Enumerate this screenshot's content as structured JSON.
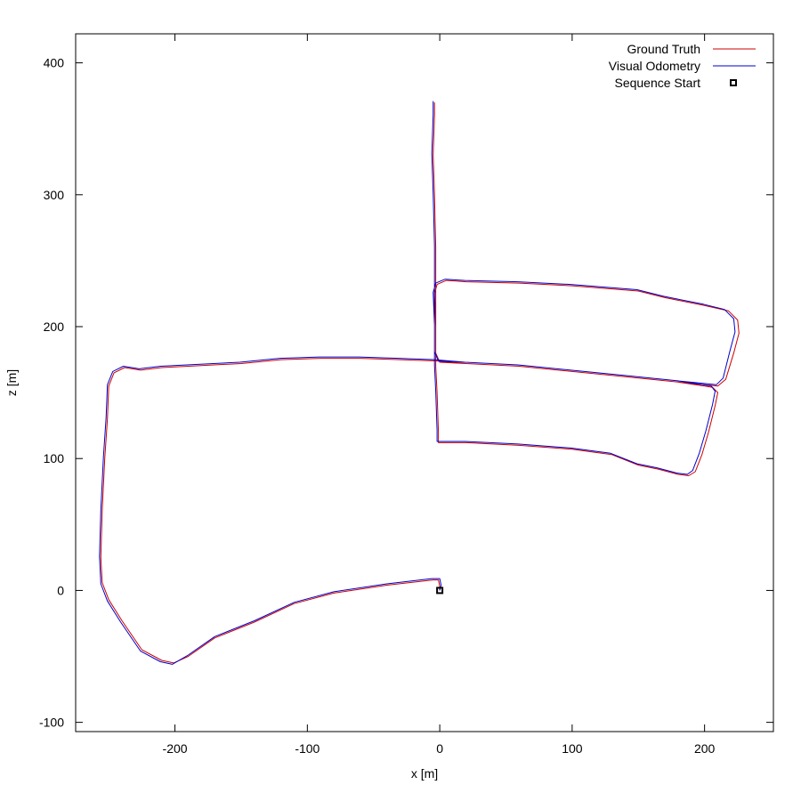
{
  "chart_data": {
    "type": "line",
    "xlabel": "x [m]",
    "ylabel": "z [m]",
    "xlim": [
      -275,
      252
    ],
    "ylim": [
      -107,
      422
    ],
    "xticks": [
      -200,
      -100,
      0,
      100,
      200
    ],
    "yticks": [
      -100,
      0,
      100,
      200,
      300,
      400
    ],
    "grid": false,
    "legend_position": "top-right",
    "series": [
      {
        "name": "Ground Truth",
        "color": "#cc0000",
        "points": [
          [
            0,
            0
          ],
          [
            0,
            3
          ],
          [
            -1,
            8
          ],
          [
            -5,
            8
          ],
          [
            -40,
            4
          ],
          [
            -80,
            -2
          ],
          [
            -110,
            -10
          ],
          [
            -140,
            -24
          ],
          [
            -170,
            -36
          ],
          [
            -190,
            -50
          ],
          [
            -201,
            -55
          ],
          [
            -210,
            -53
          ],
          [
            -225,
            -45
          ],
          [
            -240,
            -23
          ],
          [
            -250,
            -7
          ],
          [
            -255,
            6
          ],
          [
            -256,
            25
          ],
          [
            -255,
            60
          ],
          [
            -253,
            100
          ],
          [
            -251,
            130
          ],
          [
            -250,
            155
          ],
          [
            -246,
            165
          ],
          [
            -238,
            169
          ],
          [
            -226,
            167
          ],
          [
            -210,
            169
          ],
          [
            -190,
            170
          ],
          [
            -150,
            172
          ],
          [
            -120,
            175
          ],
          [
            -90,
            176
          ],
          [
            -60,
            176
          ],
          [
            -30,
            175
          ],
          [
            -3,
            174
          ],
          [
            20,
            172
          ],
          [
            60,
            170
          ],
          [
            100,
            166
          ],
          [
            140,
            162
          ],
          [
            180,
            158
          ],
          [
            200,
            156
          ],
          [
            210,
            155
          ],
          [
            216,
            160
          ],
          [
            222,
            180
          ],
          [
            226,
            195
          ],
          [
            225,
            205
          ],
          [
            218,
            212
          ],
          [
            200,
            216
          ],
          [
            180,
            220
          ],
          [
            170,
            222
          ],
          [
            150,
            227
          ],
          [
            100,
            231
          ],
          [
            60,
            233
          ],
          [
            20,
            234
          ],
          [
            5,
            235
          ],
          [
            -2,
            232
          ],
          [
            -4,
            225
          ],
          [
            -3,
            200
          ],
          [
            -3,
            170
          ],
          [
            -2,
            150
          ],
          [
            -1,
            120
          ],
          [
            -1,
            112
          ],
          [
            3,
            112
          ],
          [
            20,
            112
          ],
          [
            60,
            110
          ],
          [
            100,
            107
          ],
          [
            130,
            103
          ],
          [
            150,
            95
          ],
          [
            165,
            92
          ],
          [
            180,
            88
          ],
          [
            188,
            87
          ],
          [
            193,
            90
          ],
          [
            198,
            103
          ],
          [
            203,
            120
          ],
          [
            208,
            140
          ],
          [
            210,
            150
          ],
          [
            206,
            154
          ],
          [
            200,
            155
          ],
          [
            180,
            158
          ],
          [
            140,
            162
          ],
          [
            100,
            166
          ],
          [
            60,
            170
          ],
          [
            20,
            172
          ],
          [
            0,
            173
          ],
          [
            -3,
            180
          ],
          [
            -3,
            220
          ],
          [
            -3,
            260
          ],
          [
            -4,
            300
          ],
          [
            -5,
            330
          ],
          [
            -4,
            360
          ],
          [
            -4,
            370
          ]
        ]
      },
      {
        "name": "Visual Odometry",
        "color": "#0000cc",
        "points": [
          [
            0,
            0
          ],
          [
            1,
            4
          ],
          [
            0,
            9
          ],
          [
            -6,
            9
          ],
          [
            -40,
            5
          ],
          [
            -80,
            -1
          ],
          [
            -110,
            -9
          ],
          [
            -140,
            -23
          ],
          [
            -170,
            -35
          ],
          [
            -190,
            -49
          ],
          [
            -202,
            -56
          ],
          [
            -211,
            -54
          ],
          [
            -226,
            -46
          ],
          [
            -241,
            -24
          ],
          [
            -251,
            -8
          ],
          [
            -256,
            5
          ],
          [
            -257,
            26
          ],
          [
            -256,
            61
          ],
          [
            -254,
            101
          ],
          [
            -252,
            131
          ],
          [
            -251,
            156
          ],
          [
            -247,
            166
          ],
          [
            -239,
            170
          ],
          [
            -227,
            168
          ],
          [
            -211,
            170
          ],
          [
            -191,
            171
          ],
          [
            -151,
            173
          ],
          [
            -121,
            176
          ],
          [
            -91,
            177
          ],
          [
            -61,
            177
          ],
          [
            -31,
            176
          ],
          [
            -4,
            175
          ],
          [
            19,
            173
          ],
          [
            59,
            171
          ],
          [
            99,
            167
          ],
          [
            139,
            163
          ],
          [
            179,
            159
          ],
          [
            199,
            157
          ],
          [
            209,
            156
          ],
          [
            214,
            161
          ],
          [
            219,
            181
          ],
          [
            223,
            196
          ],
          [
            222,
            206
          ],
          [
            215,
            213
          ],
          [
            199,
            217
          ],
          [
            179,
            221
          ],
          [
            169,
            223
          ],
          [
            149,
            228
          ],
          [
            99,
            232
          ],
          [
            59,
            234
          ],
          [
            19,
            235
          ],
          [
            4,
            236
          ],
          [
            -3,
            233
          ],
          [
            -5,
            226
          ],
          [
            -4,
            201
          ],
          [
            -4,
            171
          ],
          [
            -3,
            151
          ],
          [
            -2,
            121
          ],
          [
            -2,
            113
          ],
          [
            2,
            113
          ],
          [
            19,
            113
          ],
          [
            59,
            111
          ],
          [
            99,
            108
          ],
          [
            129,
            104
          ],
          [
            149,
            96
          ],
          [
            164,
            93
          ],
          [
            179,
            89
          ],
          [
            187,
            88
          ],
          [
            191,
            91
          ],
          [
            196,
            104
          ],
          [
            201,
            121
          ],
          [
            206,
            141
          ],
          [
            208,
            151
          ],
          [
            205,
            155
          ],
          [
            199,
            156
          ],
          [
            179,
            159
          ],
          [
            139,
            163
          ],
          [
            99,
            167
          ],
          [
            59,
            171
          ],
          [
            19,
            173
          ],
          [
            -1,
            174
          ],
          [
            -4,
            181
          ],
          [
            -4,
            221
          ],
          [
            -4,
            261
          ],
          [
            -5,
            301
          ],
          [
            -6,
            331
          ],
          [
            -5,
            361
          ],
          [
            -5,
            371
          ]
        ]
      }
    ],
    "markers": [
      {
        "name": "Sequence Start",
        "x": 0,
        "y": 0,
        "shape": "open-square"
      }
    ]
  }
}
